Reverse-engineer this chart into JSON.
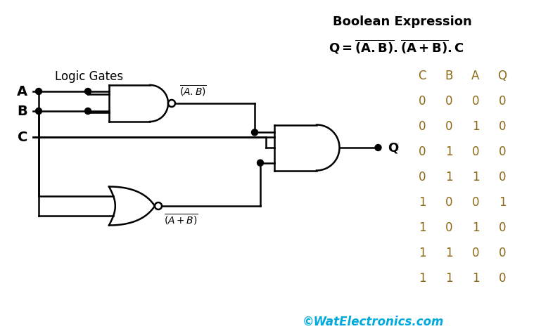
{
  "title": "Boolean Expression",
  "logic_gates_label": "Logic Gates",
  "truth_table_headers": [
    "C",
    "B",
    "A",
    "Q"
  ],
  "truth_table_data": [
    [
      0,
      0,
      0,
      0
    ],
    [
      0,
      0,
      1,
      0
    ],
    [
      0,
      1,
      0,
      0
    ],
    [
      0,
      1,
      1,
      0
    ],
    [
      1,
      0,
      0,
      1
    ],
    [
      1,
      0,
      1,
      0
    ],
    [
      1,
      1,
      0,
      0
    ],
    [
      1,
      1,
      1,
      0
    ]
  ],
  "watermark": "©WatElectronics.com",
  "bg_color": "#ffffff",
  "gate_color": "#000000",
  "watermark_color": "#00aadd",
  "table_color": "#8B6914",
  "highlight_row": 4,
  "highlight_q_color": "#cc6600"
}
